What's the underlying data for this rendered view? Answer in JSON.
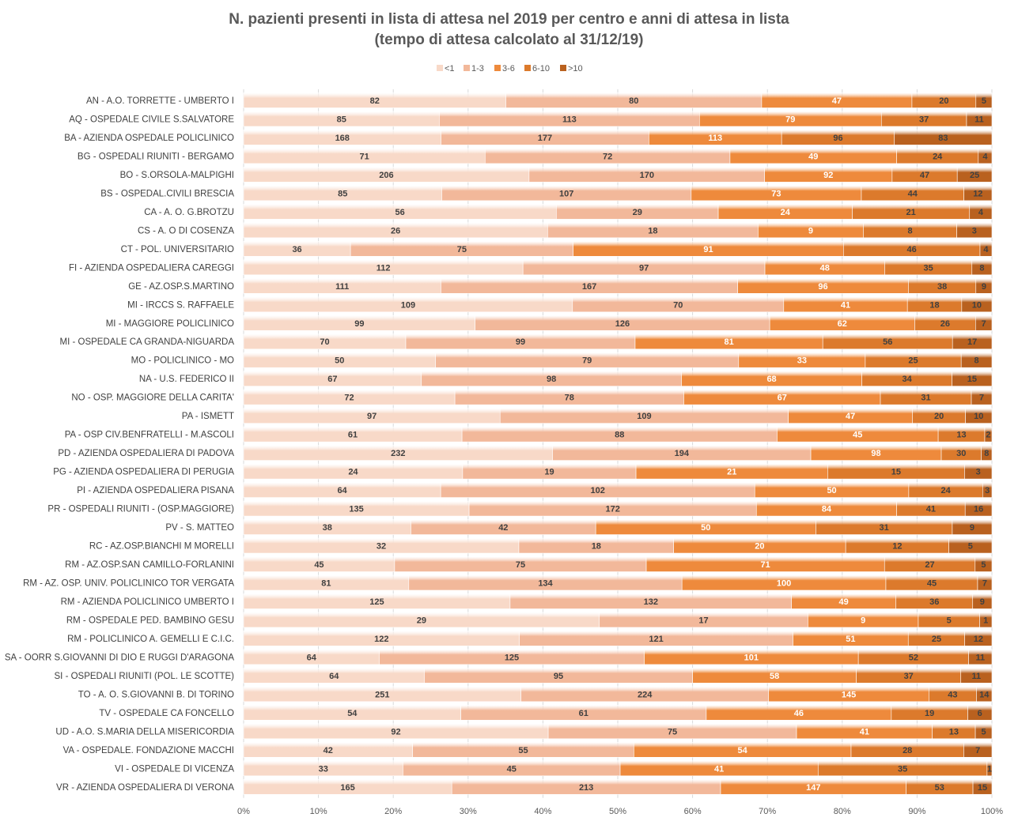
{
  "chart_data": {
    "type": "bar",
    "orientation": "horizontal",
    "stacked": "percent",
    "title": "N. pazienti presenti in lista di attesa nel 2019 per centro e anni di attesa in lista",
    "subtitle": "(tempo di attesa calcolato al 31/12/19)",
    "legend_position": "top-center",
    "xlim": [
      0,
      100
    ],
    "x_ticks": [
      "0%",
      "10%",
      "20%",
      "30%",
      "40%",
      "50%",
      "60%",
      "70%",
      "80%",
      "90%",
      "100%"
    ],
    "grid": "vertical",
    "categories": [
      "AN  -  A.O. TORRETTE - UMBERTO I",
      "AQ  -  OSPEDALE CIVILE S.SALVATORE",
      "BA  -  AZIENDA OSPEDALE POLICLINICO",
      "BG  -  OSPEDALI RIUNITI - BERGAMO",
      "BO  -  S.ORSOLA-MALPIGHI",
      "BS  -  OSPEDAL.CIVILI BRESCIA",
      "CA  -  A. O. G.BROTZU",
      "CS  -  A. O DI COSENZA",
      "CT  -  POL. UNIVERSITARIO",
      "FI  -  AZIENDA OSPEDALIERA CAREGGI",
      "GE  -  AZ.OSP.S.MARTINO",
      "MI  -  IRCCS S. RAFFAELE",
      "MI  -  MAGGIORE POLICLINICO",
      "MI  -  OSPEDALE CA GRANDA-NIGUARDA",
      "MO  -  POLICLINICO - MO",
      "NA  -  U.S. FEDERICO II",
      "NO  -  OSP. MAGGIORE DELLA CARITA'",
      "PA  -  ISMETT",
      "PA  -  OSP CIV.BENFRATELLI - M.ASCOLI",
      "PD  -  AZIENDA OSPEDALIERA DI PADOVA",
      "PG  -  AZIENDA OSPEDALIERA DI PERUGIA",
      "PI  -  AZIENDA OSPEDALIERA PISANA",
      "PR  -  OSPEDALI RIUNITI - (OSP.MAGGIORE)",
      "PV  -  S. MATTEO",
      "RC  -  AZ.OSP.BIANCHI M MORELLI",
      "RM  -  AZ.OSP.SAN CAMILLO-FORLANINI",
      "RM  -  AZ. OSP. UNIV. POLICLINICO TOR VERGATA",
      "RM  -  AZIENDA POLICLINICO UMBERTO I",
      "RM  -  OSPEDALE PED. BAMBINO GESU",
      "RM  -  POLICLINICO A. GEMELLI E C.I.C.",
      "SA - OORR S.GIOVANNI DI DIO E RUGGI D'ARAGONA",
      "SI  -  OSPEDALI RIUNITI (POL. LE SCOTTE)",
      "TO  -  A. O. S.GIOVANNI B. DI TORINO",
      "TV  -  OSPEDALE CA FONCELLO",
      "UD  - A.O. S.MARIA DELLA MISERICORDIA",
      "VA  -  OSPEDALE. FONDAZIONE MACCHI",
      "VI  -  OSPEDALE DI VICENZA",
      "VR  -  AZIENDA OSPEDALIERA DI VERONA"
    ],
    "series": [
      {
        "name": "<1",
        "color": "#f8d9c8",
        "label_color": "#404040",
        "values": [
          82,
          85,
          168,
          71,
          206,
          85,
          56,
          26,
          36,
          112,
          111,
          109,
          99,
          70,
          50,
          67,
          72,
          97,
          61,
          232,
          24,
          64,
          135,
          38,
          32,
          45,
          81,
          125,
          29,
          122,
          64,
          64,
          251,
          54,
          92,
          42,
          33,
          165
        ]
      },
      {
        "name": "1-3",
        "color": "#f2b89a",
        "label_color": "#404040",
        "values": [
          80,
          113,
          177,
          72,
          170,
          107,
          29,
          18,
          75,
          97,
          167,
          70,
          126,
          99,
          79,
          98,
          78,
          109,
          88,
          194,
          19,
          102,
          172,
          42,
          18,
          75,
          134,
          132,
          17,
          121,
          125,
          95,
          224,
          61,
          75,
          55,
          45,
          213
        ]
      },
      {
        "name": "3-6",
        "color": "#ee8a3c",
        "label_color": "#ffffff",
        "values": [
          47,
          79,
          113,
          49,
          92,
          73,
          24,
          9,
          91,
          48,
          96,
          41,
          62,
          81,
          33,
          68,
          67,
          47,
          45,
          98,
          21,
          50,
          84,
          50,
          20,
          71,
          100,
          49,
          9,
          51,
          101,
          58,
          145,
          46,
          41,
          54,
          41,
          147
        ]
      },
      {
        "name": "6-10",
        "color": "#dc7a2c",
        "label_color": "#404040",
        "values": [
          20,
          37,
          96,
          24,
          47,
          44,
          21,
          8,
          46,
          35,
          38,
          18,
          26,
          56,
          25,
          34,
          31,
          20,
          13,
          30,
          15,
          24,
          41,
          31,
          12,
          27,
          45,
          36,
          5,
          25,
          52,
          37,
          43,
          19,
          13,
          28,
          35,
          53
        ]
      },
      {
        "name": ">10",
        "color": "#b9611f",
        "label_color": "#404040",
        "values": [
          5,
          11,
          83,
          4,
          25,
          12,
          4,
          3,
          4,
          8,
          9,
          10,
          7,
          17,
          8,
          15,
          7,
          10,
          2,
          8,
          3,
          3,
          16,
          9,
          5,
          5,
          7,
          9,
          1,
          12,
          11,
          11,
          14,
          6,
          5,
          7,
          1,
          15
        ]
      }
    ]
  }
}
